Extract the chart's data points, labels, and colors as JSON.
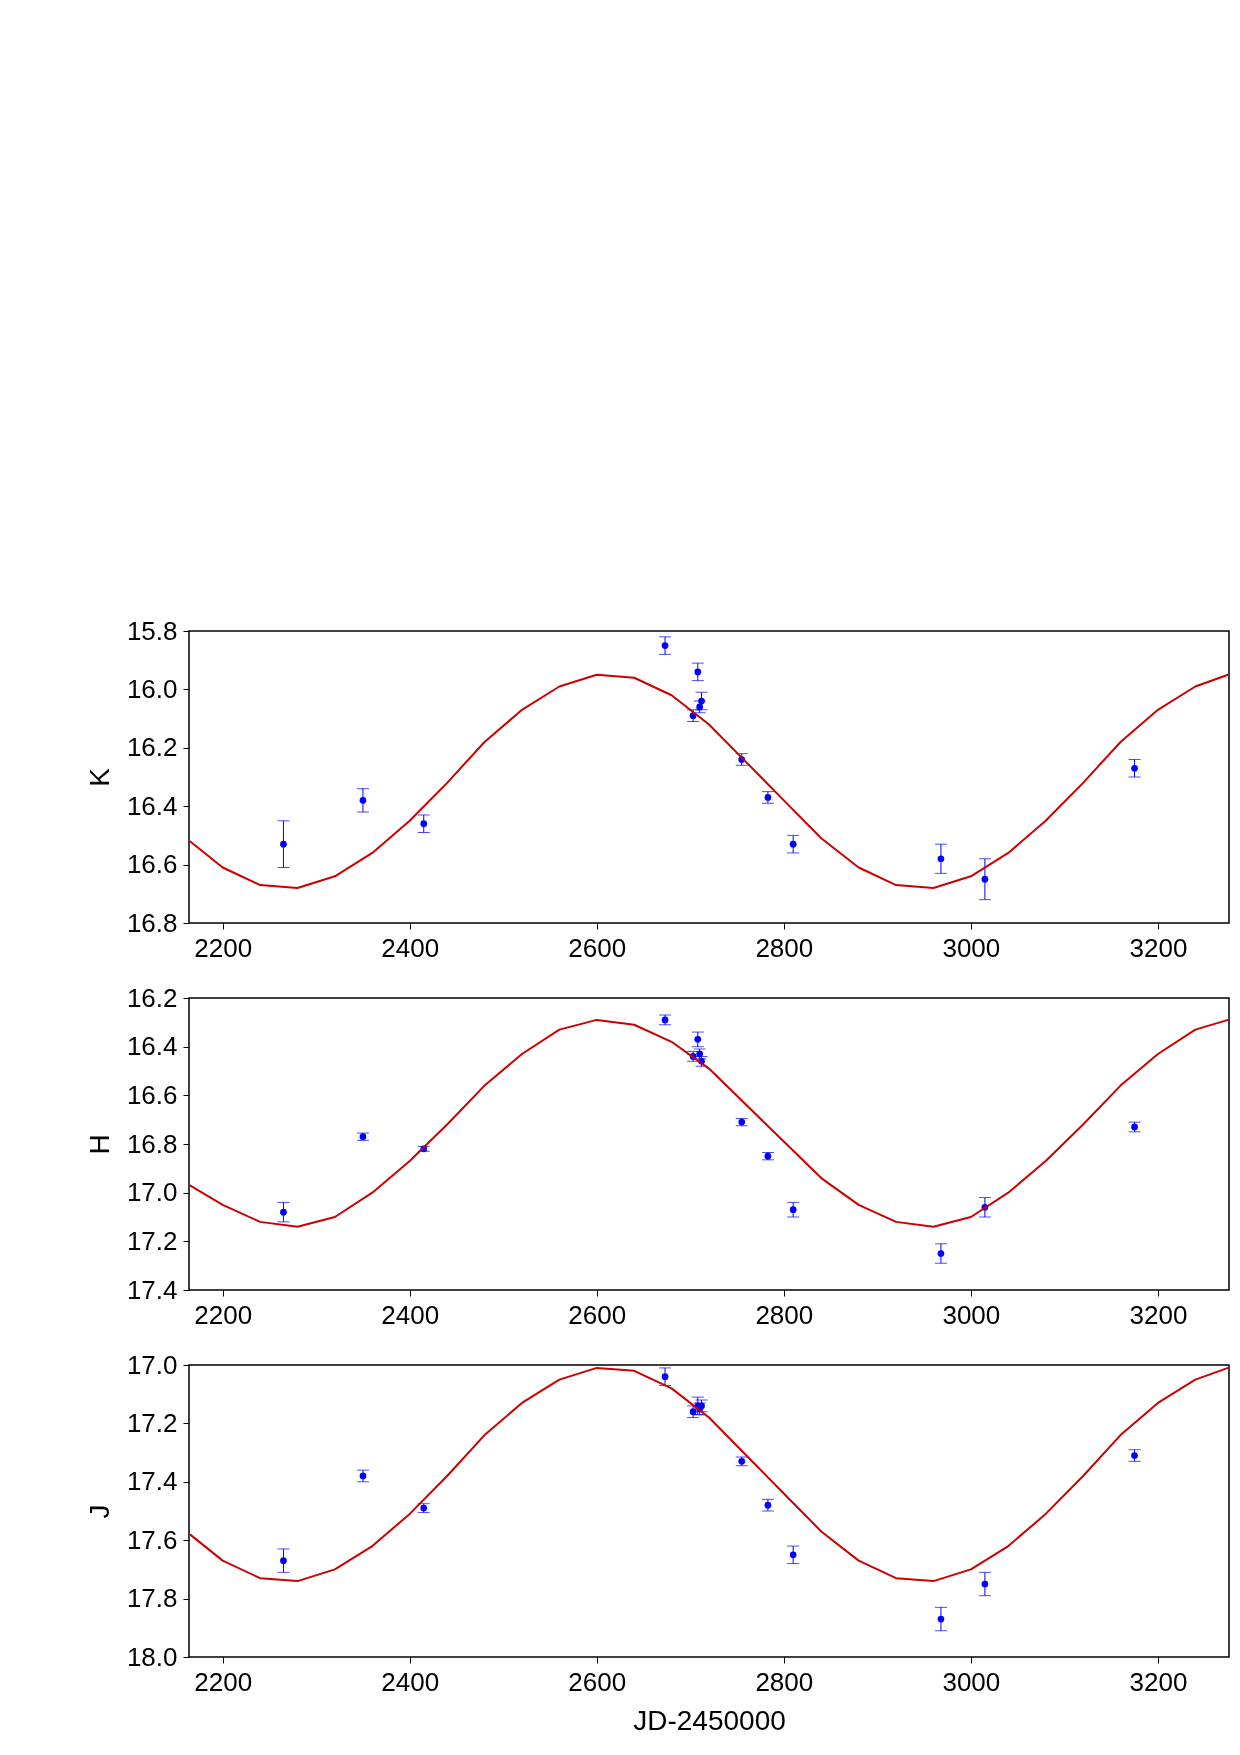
{
  "chart_data": [
    {
      "type": "scatter",
      "ylabel": "K",
      "xlim": [
        2164,
        3276
      ],
      "xticks": [
        2200,
        2400,
        2600,
        2800,
        3000,
        3200
      ],
      "ylim": [
        16.8,
        15.8
      ],
      "yticks": [
        15.8,
        {
          "value": 16.0,
          "label": "16.0"
        },
        16.2,
        16.4,
        16.6,
        16.8
      ],
      "series": [
        {
          "color": "#0000ff",
          "marker": "circle",
          "x": [
            2265,
            2350,
            2415,
            2673,
            2703,
            2708,
            2710,
            2712,
            2755,
            2783,
            2810,
            2968,
            3015,
            3175
          ],
          "values": [
            16.53,
            16.38,
            16.46,
            15.85,
            16.09,
            15.94,
            16.06,
            16.04,
            16.24,
            16.37,
            16.53,
            16.58,
            16.65,
            16.27
          ],
          "errors": [
            0.08,
            0.04,
            0.03,
            0.03,
            0.02,
            0.03,
            0.02,
            0.03,
            0.02,
            0.02,
            0.03,
            0.05,
            0.07,
            0.03
          ]
        },
        {
          "type": "line",
          "color": "#cc0000",
          "x": [
            2165,
            2200,
            2240,
            2280,
            2320,
            2360,
            2400,
            2440,
            2480,
            2520,
            2560,
            2600,
            2640,
            2680,
            2720,
            2760,
            2800,
            2840,
            2880,
            2920,
            2960,
            3000,
            3040,
            3080,
            3120,
            3160,
            3200,
            3240,
            3275
          ],
          "values": [
            16.52,
            16.61,
            16.67,
            16.68,
            16.64,
            16.56,
            16.45,
            16.32,
            16.18,
            16.07,
            15.99,
            15.95,
            15.96,
            16.02,
            16.12,
            16.25,
            16.38,
            16.51,
            16.61,
            16.67,
            16.68,
            16.64,
            16.56,
            16.45,
            16.32,
            16.18,
            16.07,
            15.99,
            15.95
          ]
        }
      ]
    },
    {
      "type": "scatter",
      "ylabel": "H",
      "xlim": [
        2164,
        3276
      ],
      "xticks": [
        2200,
        2400,
        2600,
        2800,
        3000,
        3200
      ],
      "ylim": [
        17.4,
        16.2
      ],
      "yticks": [
        16.2,
        16.4,
        16.6,
        16.8,
        {
          "value": 17.0,
          "label": "17.0"
        },
        17.2,
        17.4
      ],
      "series": [
        {
          "color": "#0000ff",
          "marker": "circle",
          "x": [
            2265,
            2350,
            2415,
            2673,
            2703,
            2708,
            2710,
            2712,
            2755,
            2783,
            2810,
            2968,
            3015,
            3175
          ],
          "values": [
            17.08,
            16.77,
            16.82,
            16.29,
            16.44,
            16.37,
            16.43,
            16.46,
            16.71,
            16.85,
            17.07,
            17.25,
            17.06,
            16.73
          ],
          "errors": [
            0.04,
            0.015,
            0.01,
            0.02,
            0.02,
            0.03,
            0.02,
            0.02,
            0.015,
            0.015,
            0.03,
            0.04,
            0.04,
            0.02
          ]
        },
        {
          "type": "line",
          "color": "#cc0000",
          "x": [
            2165,
            2200,
            2240,
            2280,
            2320,
            2360,
            2400,
            2440,
            2480,
            2520,
            2560,
            2600,
            2640,
            2680,
            2720,
            2760,
            2800,
            2840,
            2880,
            2920,
            2960,
            3000,
            3040,
            3080,
            3120,
            3160,
            3200,
            3240,
            3275
          ],
          "values": [
            16.97,
            17.05,
            17.12,
            17.14,
            17.1,
            17.0,
            16.87,
            16.72,
            16.56,
            16.43,
            16.33,
            16.29,
            16.31,
            16.38,
            16.49,
            16.64,
            16.79,
            16.94,
            17.05,
            17.12,
            17.14,
            17.1,
            17.0,
            16.87,
            16.72,
            16.56,
            16.43,
            16.33,
            16.29
          ]
        }
      ]
    },
    {
      "type": "scatter",
      "xlabel": "JD-2450000",
      "ylabel": "J",
      "xlim": [
        2164,
        3276
      ],
      "xticks": [
        2200,
        2400,
        2600,
        2800,
        3000,
        3200
      ],
      "ylim": [
        18.0,
        17.0
      ],
      "yticks": [
        {
          "value": 17.0,
          "label": "17.0"
        },
        17.2,
        17.4,
        17.6,
        17.8,
        {
          "value": 18.0,
          "label": "18.0"
        }
      ],
      "series": [
        {
          "color": "#0000ff",
          "marker": "circle",
          "x": [
            2265,
            2350,
            2415,
            2673,
            2703,
            2708,
            2710,
            2712,
            2755,
            2783,
            2810,
            2968,
            3015,
            3175
          ],
          "values": [
            17.67,
            17.38,
            17.49,
            17.04,
            17.16,
            17.14,
            17.15,
            17.14,
            17.33,
            17.48,
            17.65,
            17.87,
            17.75,
            17.31
          ],
          "errors": [
            0.04,
            0.02,
            0.015,
            0.03,
            0.02,
            0.03,
            0.02,
            0.02,
            0.015,
            0.02,
            0.03,
            0.04,
            0.04,
            0.02
          ]
        },
        {
          "type": "line",
          "color": "#cc0000",
          "x": [
            2165,
            2200,
            2240,
            2280,
            2320,
            2360,
            2400,
            2440,
            2480,
            2520,
            2560,
            2600,
            2640,
            2680,
            2720,
            2760,
            2800,
            2840,
            2880,
            2920,
            2960,
            3000,
            3040,
            3080,
            3120,
            3160,
            3200,
            3240,
            3275
          ],
          "values": [
            17.58,
            17.67,
            17.73,
            17.74,
            17.7,
            17.62,
            17.51,
            17.38,
            17.24,
            17.13,
            17.05,
            17.01,
            17.02,
            17.08,
            17.18,
            17.31,
            17.44,
            17.57,
            17.67,
            17.73,
            17.74,
            17.7,
            17.62,
            17.51,
            17.38,
            17.24,
            17.13,
            17.05,
            17.01
          ]
        }
      ]
    }
  ]
}
